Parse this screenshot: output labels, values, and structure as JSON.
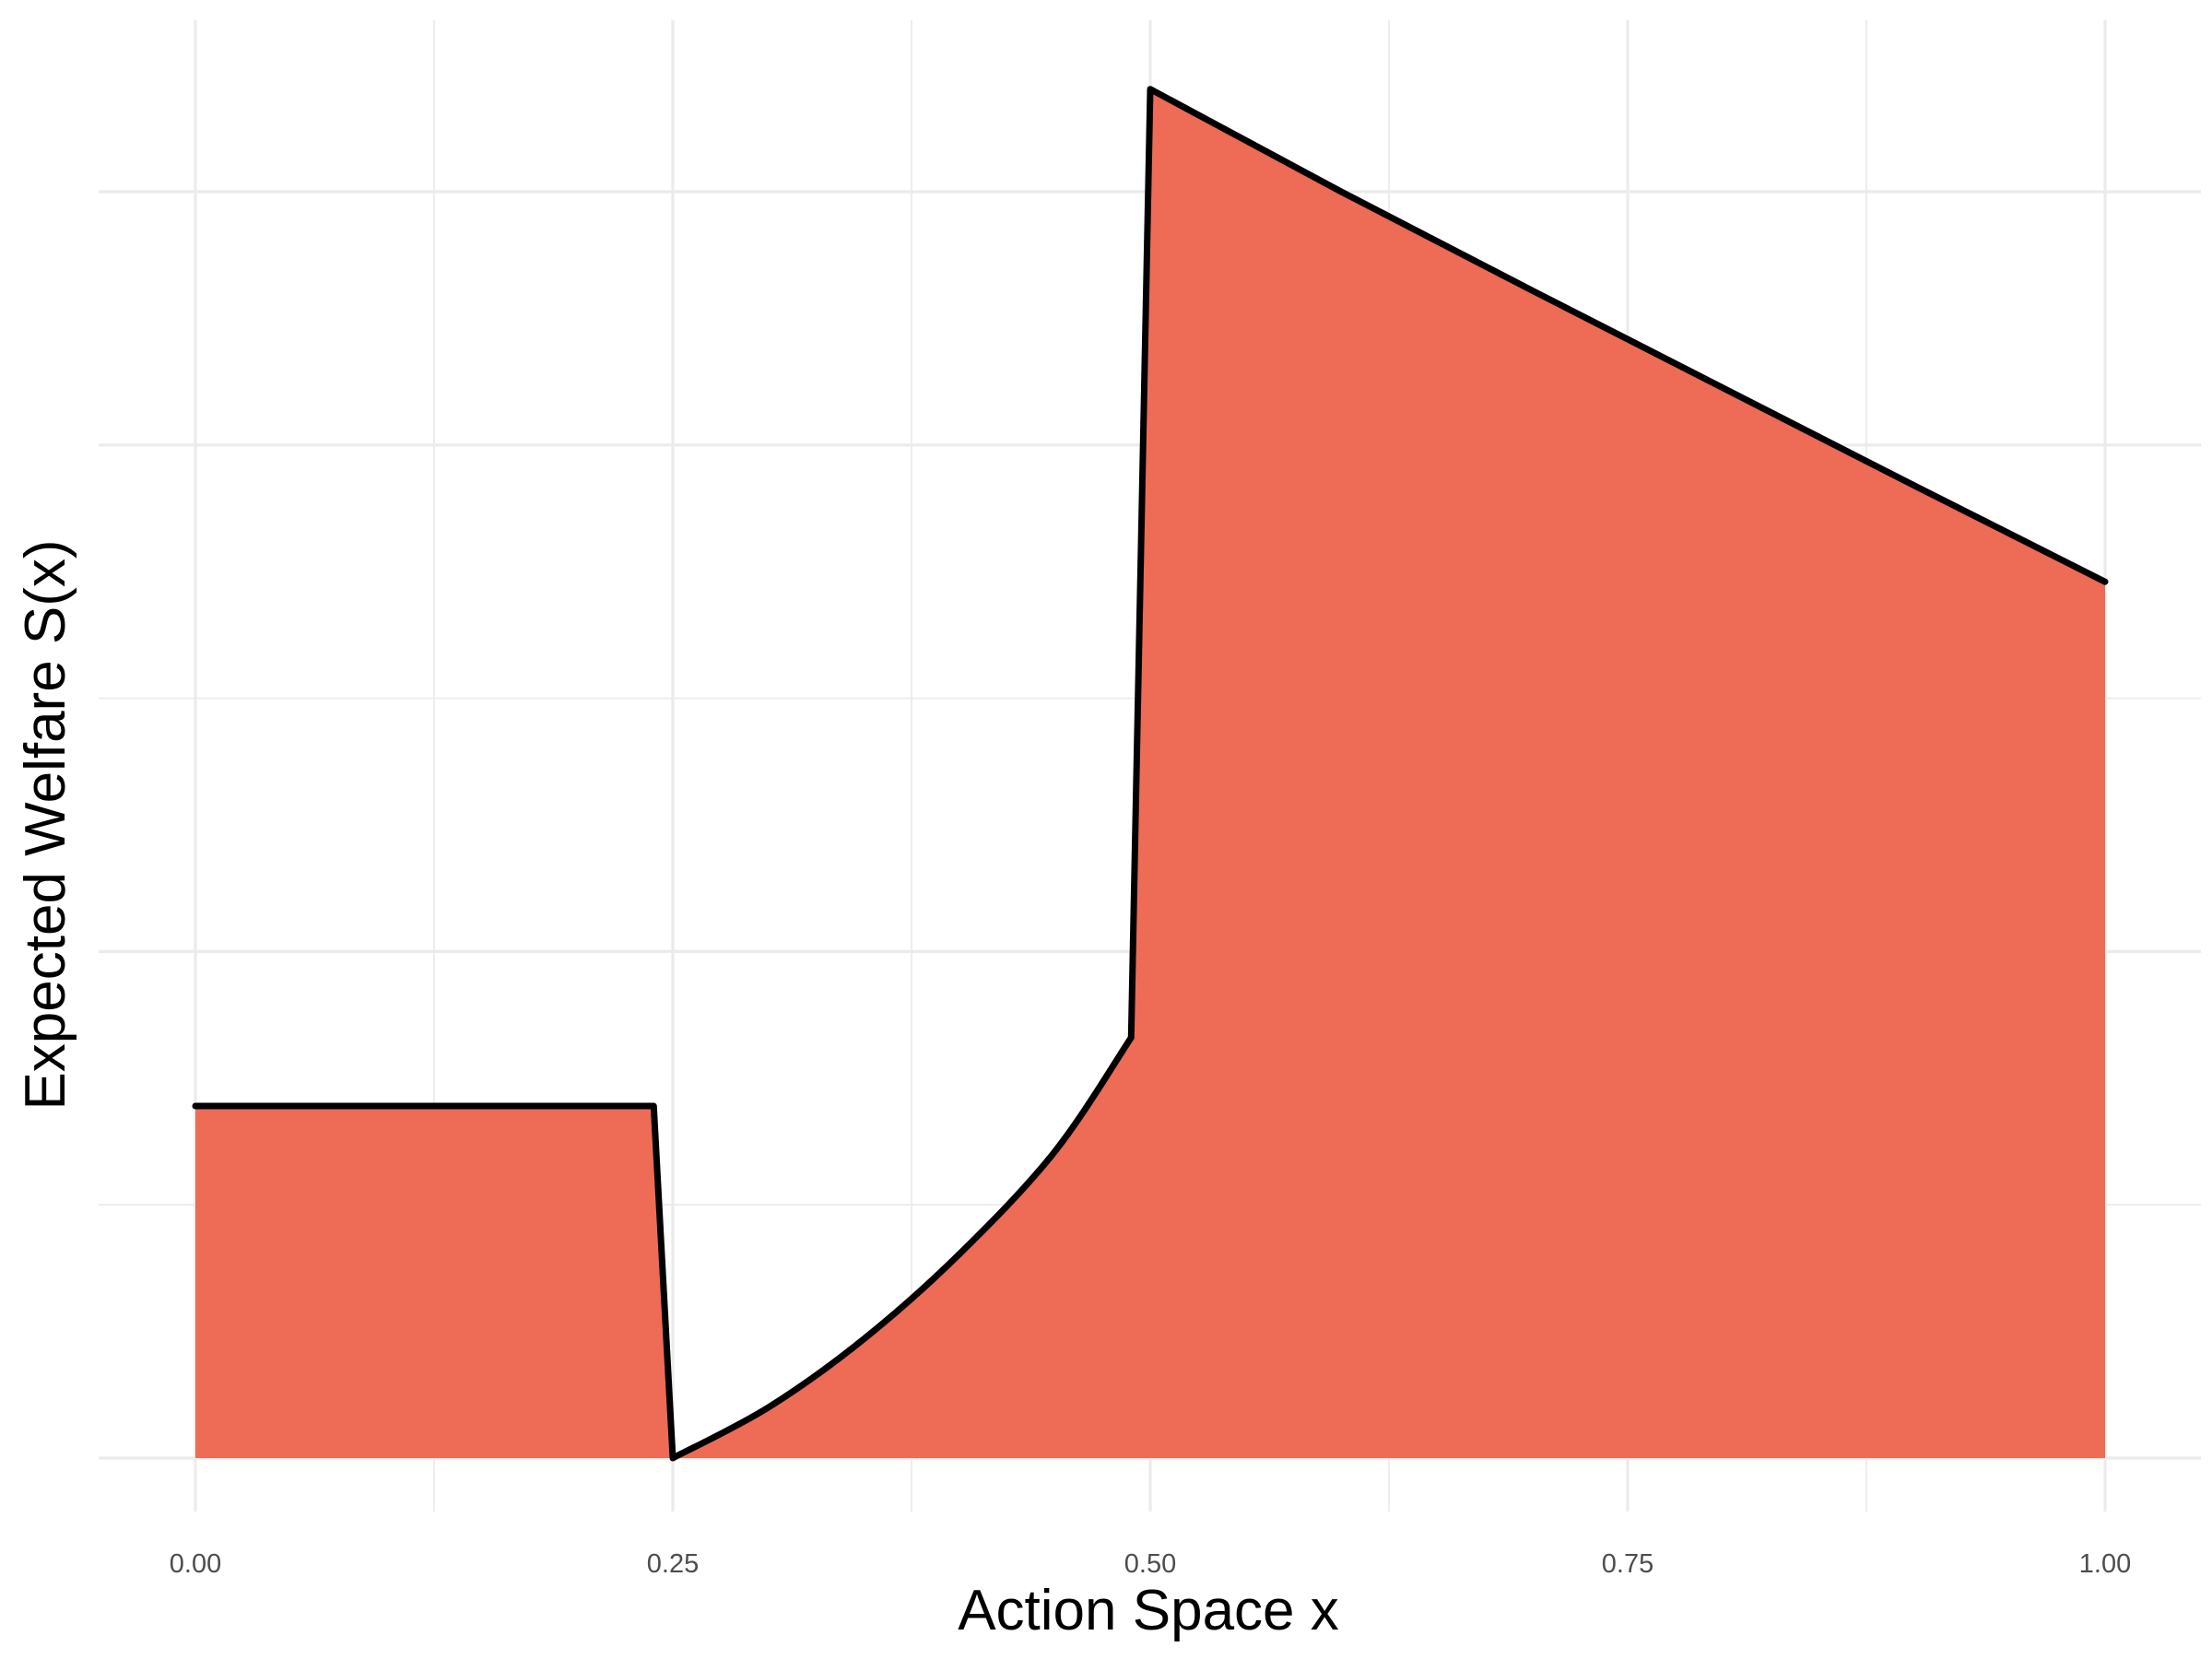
{
  "chart_data": {
    "type": "area",
    "title": "",
    "xlabel": "Action Space x",
    "ylabel": "Expected Welfare S(x)",
    "xlim": [
      -0.05,
      1.05
    ],
    "ylim": [
      -0.05,
      1.1
    ],
    "x_ticks": [
      0.0,
      0.25,
      0.5,
      0.75,
      1.0
    ],
    "x_tick_labels": [
      "0.00",
      "0.25",
      "0.50",
      "0.75",
      "1.00"
    ],
    "x_minor_ticks": [
      0.125,
      0.375,
      0.625,
      0.875
    ],
    "y_gridlines": [
      0.0,
      0.4,
      0.8,
      1.0
    ],
    "y_minor_gridlines": [
      0.2,
      0.6
    ],
    "y_tick_labels_shown": false,
    "grid": true,
    "fill_color": "#EE6B55",
    "line_color": "#000000",
    "series": [
      {
        "name": "S(x)",
        "segments": [
          {
            "x": [
              0.0,
              0.24
            ],
            "y": [
              0.278,
              0.278
            ]
          },
          {
            "x": [
              0.24,
              0.25
            ],
            "y": [
              0.278,
              0.0
            ]
          },
          {
            "x": [
              0.25,
              0.3,
              0.35,
              0.4,
              0.45,
              0.49
            ],
            "y": [
              0.0,
              0.04,
              0.094,
              0.161,
              0.242,
              0.332
            ]
          },
          {
            "x": [
              0.49,
              0.5
            ],
            "y": [
              0.332,
              1.081
            ]
          },
          {
            "x": [
              0.5,
              0.6,
              0.7,
              0.8,
              0.9,
              1.0
            ],
            "y": [
              1.081,
              1.0,
              0.922,
              0.845,
              0.768,
              0.692
            ]
          }
        ]
      }
    ]
  }
}
